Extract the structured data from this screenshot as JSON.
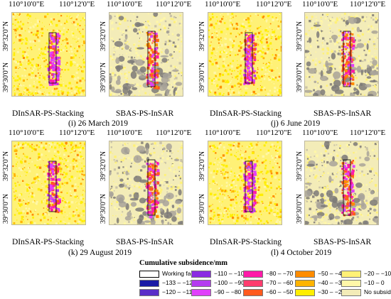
{
  "lon_labels": {
    "a": "110°10'0\"E",
    "b": "110°12'0\"E"
  },
  "lat_labels": {
    "a": "39°32'0\"N",
    "b": "39°30'0\"N"
  },
  "method_labels": {
    "dinsar": "DInSAR-PS-Stacking",
    "sbas": "SBAS-PS-InSAR"
  },
  "captions": {
    "i": "(i) 26 March 2019",
    "j": "(j) 6 June 2019",
    "k": "(k) 29 August 2019",
    "l": "(l) 4 October 2019"
  },
  "legend": {
    "title": "Cumulative subsidence/mm",
    "items": [
      {
        "label": "Working face",
        "color": "#ffffff"
      },
      {
        "label": "−133 – −120",
        "color": "#1a1aa6"
      },
      {
        "label": "−120 – −110",
        "color": "#5a2ec8"
      },
      {
        "label": "−110 – −100",
        "color": "#8a2be2"
      },
      {
        "label": "−100 – −90",
        "color": "#b43cf0"
      },
      {
        "label": "−90 – −80",
        "color": "#e040fb"
      },
      {
        "label": "−80 – −70",
        "color": "#ff1aa8"
      },
      {
        "label": "−70 – −60",
        "color": "#ff3c6e"
      },
      {
        "label": "−60 – −50",
        "color": "#ff5a1e"
      },
      {
        "label": "−50 – −40",
        "color": "#ff8c00"
      },
      {
        "label": "−40 – −30",
        "color": "#ffb400"
      },
      {
        "label": "−30 – −20",
        "color": "#ffee00"
      },
      {
        "label": "−20 – −10",
        "color": "#fff176"
      },
      {
        "label": "−10 – 0",
        "color": "#fff7a8"
      },
      {
        "label": "No subsidence",
        "color": "#f3ecb8"
      }
    ]
  }
}
